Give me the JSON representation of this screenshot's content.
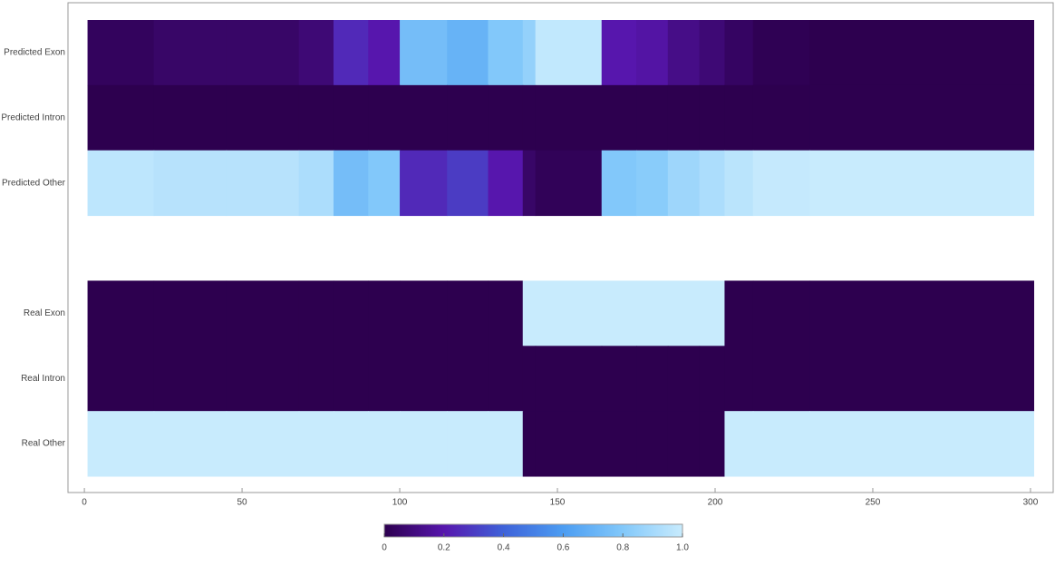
{
  "chart_data": {
    "type": "heatmap",
    "categories": [
      "Predicted Exon",
      "Predicted Intron",
      "Predicted Other",
      null,
      "Real Exon",
      "Real Intron",
      "Real Other"
    ],
    "bins": [
      1,
      22,
      45,
      68,
      79,
      90,
      100,
      115,
      128,
      139,
      143,
      164,
      175,
      185,
      195,
      203,
      212,
      230,
      301
    ],
    "values": [
      [
        0.03,
        0.05,
        0.05,
        0.08,
        0.25,
        0.2,
        0.75,
        0.7,
        0.8,
        0.85,
        0.98,
        0.2,
        0.18,
        0.12,
        0.08,
        0.04,
        0.01,
        0
      ],
      [
        0,
        0,
        0,
        0,
        0,
        0,
        0,
        0,
        0,
        0,
        0,
        0,
        0,
        0,
        0,
        0,
        0,
        0
      ],
      [
        0.97,
        0.95,
        0.95,
        0.92,
        0.75,
        0.8,
        0.25,
        0.3,
        0.2,
        0.05,
        0.02,
        0.8,
        0.82,
        0.88,
        0.92,
        0.96,
        0.99,
        1
      ],
      null,
      [
        0,
        0,
        0,
        0,
        0,
        0,
        0,
        0,
        0,
        1,
        1,
        1,
        1,
        1,
        1,
        0,
        0,
        0
      ],
      [
        0,
        0,
        0,
        0,
        0,
        0,
        0,
        0,
        0,
        0,
        0,
        0,
        0,
        0,
        0,
        0,
        0,
        0
      ],
      [
        1,
        1,
        1,
        1,
        1,
        1,
        1,
        1,
        1,
        0,
        0,
        0,
        0,
        0,
        0,
        1,
        1,
        1
      ]
    ],
    "xlim": [
      -5.2,
      307.2
    ],
    "xticks": [
      0,
      50,
      100,
      150,
      200,
      250,
      300
    ],
    "colorscale": [
      "#2d004f",
      "#5716ad",
      "#3e62d9",
      "#4c9df2",
      "#82c8fa",
      "#c8ebfd"
    ],
    "clim": [
      0,
      1
    ],
    "cticks": [
      0,
      0.2,
      0.4,
      0.6,
      0.8,
      {
        "value": 1,
        "label": "1.0"
      }
    ]
  }
}
